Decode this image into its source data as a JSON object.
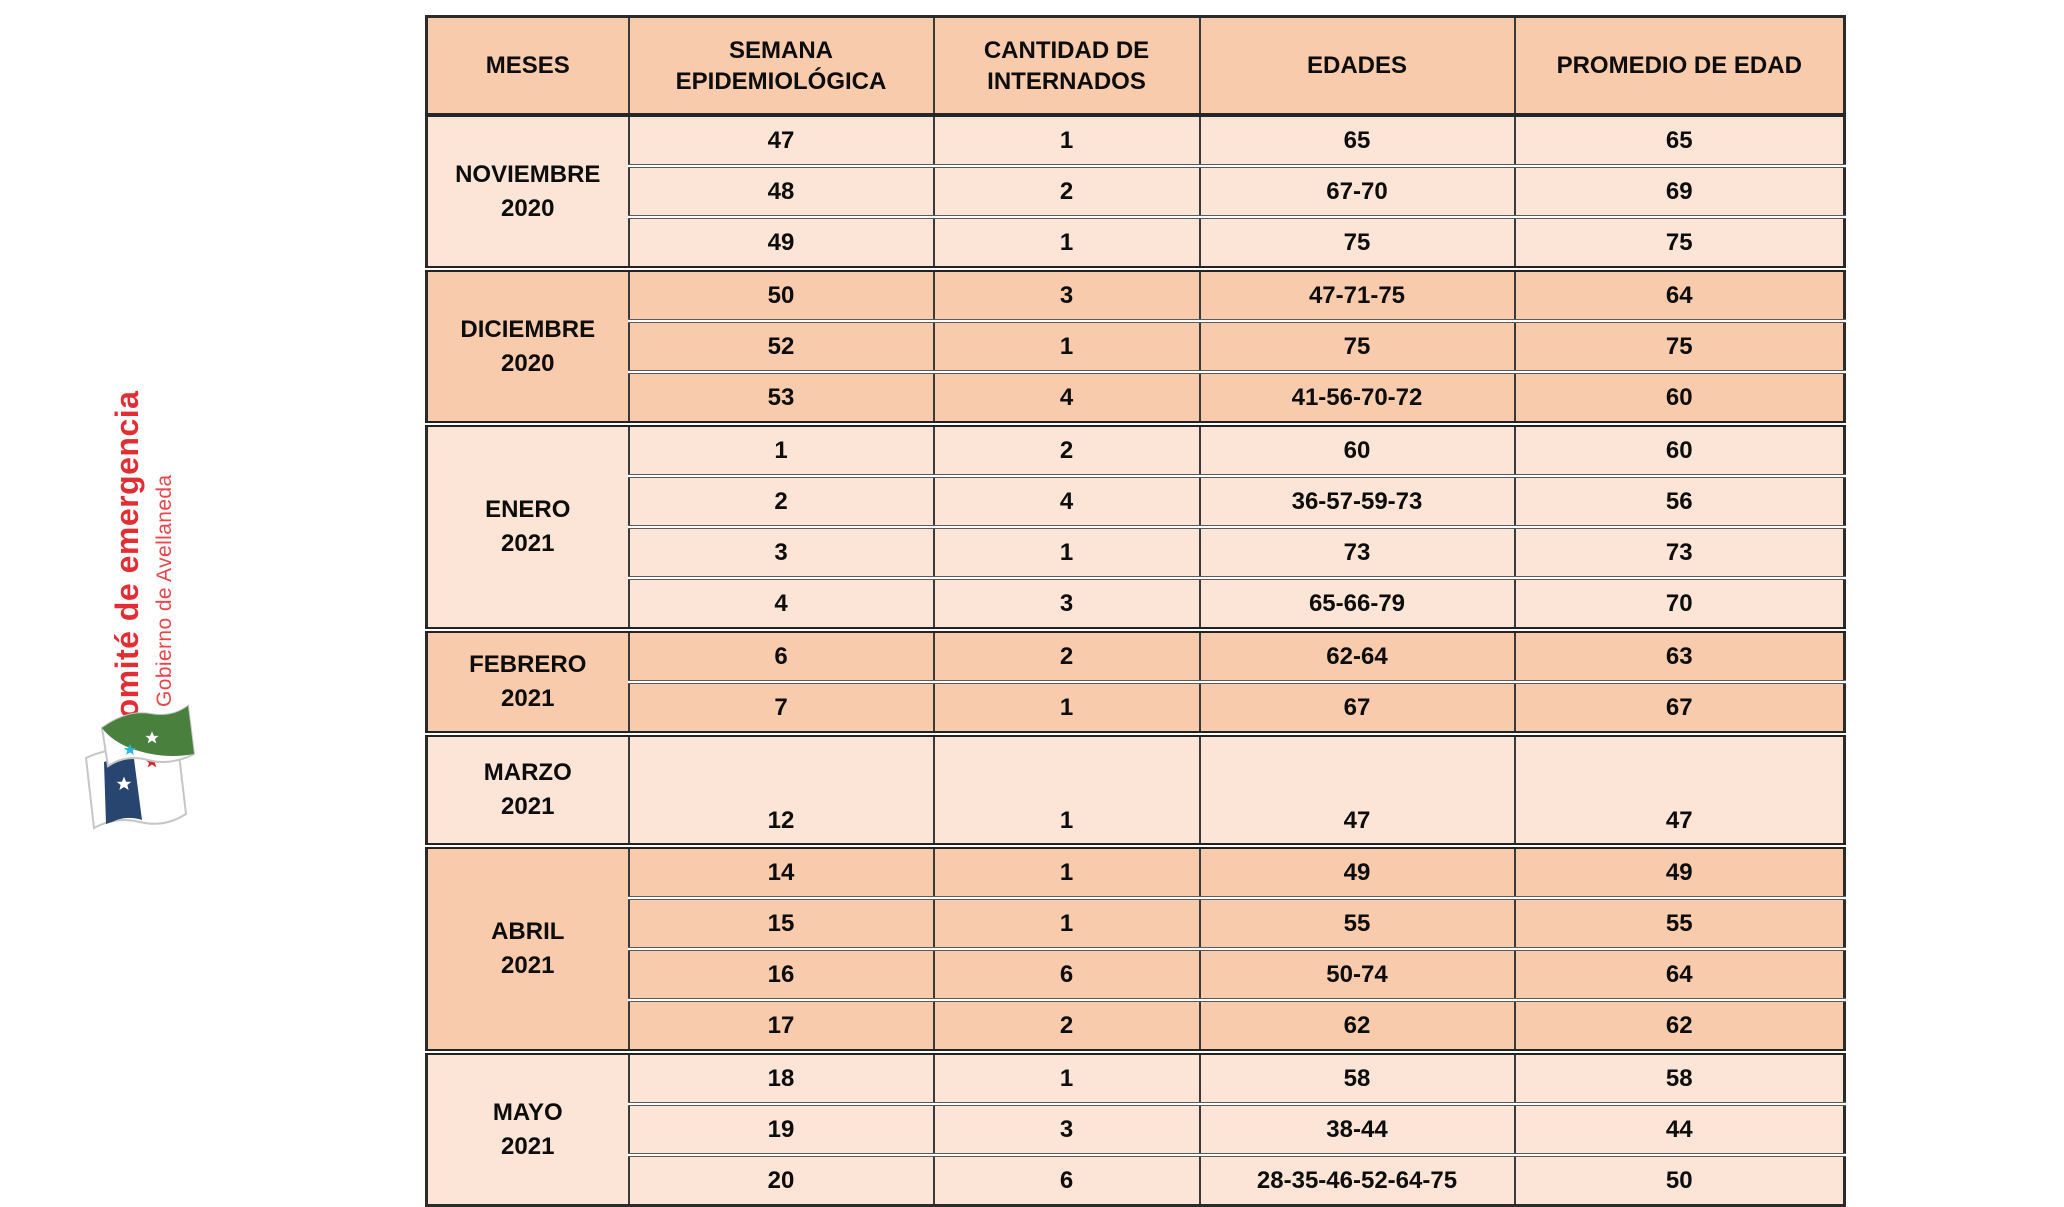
{
  "logo": {
    "title": "Comité de emergencia",
    "subtitle": "Gobierno de Avellaneda",
    "title_color": "#e32d33",
    "flag_colors": {
      "green": "#49803d",
      "blue": "#27456f",
      "cyan": "#2ab4e4",
      "red": "#d22b31",
      "white": "#ffffff"
    }
  },
  "table": {
    "columns": [
      "MESES",
      "SEMANA EPIDEMIOLÓGICA",
      "CANTIDAD DE INTERNADOS",
      "EDADES",
      "PROMEDIO DE EDAD"
    ],
    "colors": {
      "header_bg": "#f8cbad",
      "row_light": "#fce4d6",
      "row_dark": "#f8cbad",
      "border": "#3a3a3a",
      "text": "#0d0d0d"
    },
    "groups": [
      {
        "month": "NOVIEMBRE",
        "year": "2020",
        "shade": "light",
        "tall": false,
        "rows": [
          {
            "semana": "47",
            "internados": "1",
            "edades": "65",
            "promedio": "65"
          },
          {
            "semana": "48",
            "internados": "2",
            "edades": "67-70",
            "promedio": "69"
          },
          {
            "semana": "49",
            "internados": "1",
            "edades": "75",
            "promedio": "75"
          }
        ]
      },
      {
        "month": "DICIEMBRE",
        "year": "2020",
        "shade": "dark",
        "tall": false,
        "rows": [
          {
            "semana": "50",
            "internados": "3",
            "edades": "47-71-75",
            "promedio": "64"
          },
          {
            "semana": "52",
            "internados": "1",
            "edades": "75",
            "promedio": "75"
          },
          {
            "semana": "53",
            "internados": "4",
            "edades": "41-56-70-72",
            "promedio": "60"
          }
        ]
      },
      {
        "month": "ENERO",
        "year": "2021",
        "shade": "light",
        "tall": false,
        "rows": [
          {
            "semana": "1",
            "internados": "2",
            "edades": "60",
            "promedio": "60"
          },
          {
            "semana": "2",
            "internados": "4",
            "edades": "36-57-59-73",
            "promedio": "56"
          },
          {
            "semana": "3",
            "internados": "1",
            "edades": "73",
            "promedio": "73"
          },
          {
            "semana": "4",
            "internados": "3",
            "edades": "65-66-79",
            "promedio": "70"
          }
        ]
      },
      {
        "month": "FEBRERO",
        "year": "2021",
        "shade": "dark",
        "tall": false,
        "rows": [
          {
            "semana": "6",
            "internados": "2",
            "edades": "62-64",
            "promedio": "63"
          },
          {
            "semana": "7",
            "internados": "1",
            "edades": "67",
            "promedio": "67"
          }
        ]
      },
      {
        "month": "MARZO",
        "year": "2021",
        "shade": "light",
        "tall": true,
        "rows": [
          {
            "semana": "12",
            "internados": "1",
            "edades": "47",
            "promedio": "47"
          }
        ]
      },
      {
        "month": "ABRIL",
        "year": "2021",
        "shade": "dark",
        "tall": false,
        "rows": [
          {
            "semana": "14",
            "internados": "1",
            "edades": "49",
            "promedio": "49"
          },
          {
            "semana": "15",
            "internados": "1",
            "edades": "55",
            "promedio": "55"
          },
          {
            "semana": "16",
            "internados": "6",
            "edades": "50-74",
            "promedio": "64"
          },
          {
            "semana": "17",
            "internados": "2",
            "edades": "62",
            "promedio": "62"
          }
        ]
      },
      {
        "month": "MAYO",
        "year": "2021",
        "shade": "light",
        "tall": false,
        "rows": [
          {
            "semana": "18",
            "internados": "1",
            "edades": "58",
            "promedio": "58"
          },
          {
            "semana": "19",
            "internados": "3",
            "edades": "38-44",
            "promedio": "44"
          },
          {
            "semana": "20",
            "internados": "6",
            "edades": "28-35-46-52-64-75",
            "promedio": "50"
          }
        ]
      }
    ]
  }
}
